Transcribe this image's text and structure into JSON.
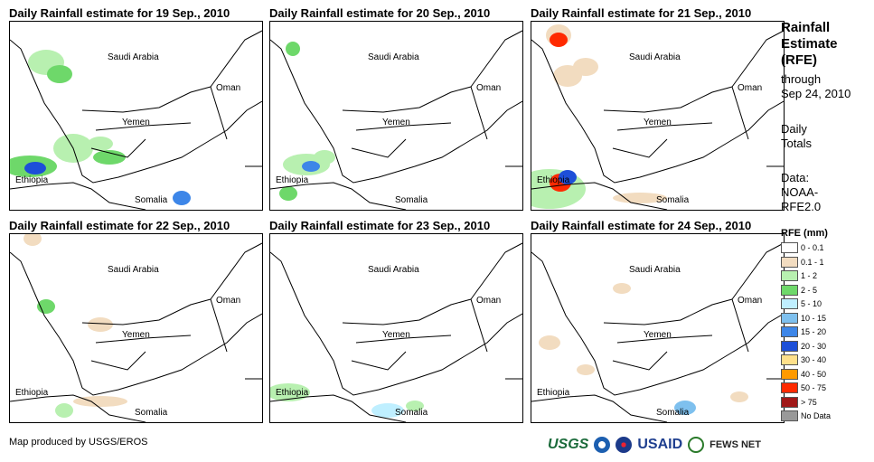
{
  "panels": [
    {
      "title": "Daily Rainfall estimate for 19 Sep., 2010"
    },
    {
      "title": "Daily Rainfall estimate for 20 Sep., 2010"
    },
    {
      "title": "Daily Rainfall estimate for 21 Sep., 2010"
    },
    {
      "title": "Daily Rainfall estimate for 22 Sep., 2010"
    },
    {
      "title": "Daily Rainfall estimate for 23 Sep., 2010"
    },
    {
      "title": "Daily Rainfall estimate for 24 Sep., 2010"
    }
  ],
  "map_labels": {
    "saudi": "Saudi Arabia",
    "oman": "Oman",
    "yemen": "Yemen",
    "ethiopia": "Ethiopia",
    "somalia": "Somalia"
  },
  "side": {
    "title_line1": "Rainfall",
    "title_line2": "Estimate",
    "title_line3": "(RFE)",
    "through": "through",
    "date": "Sep 24, 2010",
    "daily1": "Daily",
    "daily2": "Totals",
    "data1": "Data:",
    "data2": "NOAA-",
    "data3": "RFE2.0"
  },
  "legend": {
    "title": "RFE (mm)",
    "items": [
      {
        "label": "0 - 0.1",
        "color": "#ffffff"
      },
      {
        "label": "0.1 - 1",
        "color": "#f2dcc0"
      },
      {
        "label": "1 - 2",
        "color": "#b8f0b0"
      },
      {
        "label": "2 - 5",
        "color": "#6ed86a"
      },
      {
        "label": "5 - 10",
        "color": "#bfefff"
      },
      {
        "label": "10 - 15",
        "color": "#7ec0ee"
      },
      {
        "label": "15 - 20",
        "color": "#3d86e8"
      },
      {
        "label": "20 - 30",
        "color": "#1d4fd8"
      },
      {
        "label": "30 - 40",
        "color": "#ffe08a"
      },
      {
        "label": "40 - 50",
        "color": "#ff9a00"
      },
      {
        "label": "50 - 75",
        "color": "#ff2a00"
      },
      {
        "label": "> 75",
        "color": "#a01818"
      },
      {
        "label": "No Data",
        "color": "#999999"
      }
    ]
  },
  "credit": "Map produced by USGS/EROS",
  "logos": {
    "usgs": "USGS",
    "usaid": "USAID",
    "fews": "FEWS NET"
  }
}
